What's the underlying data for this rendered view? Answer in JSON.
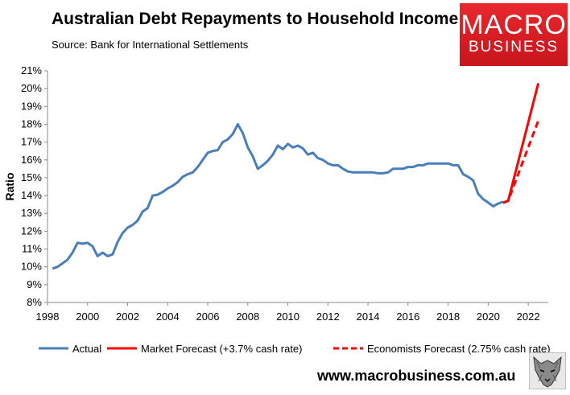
{
  "header": {
    "title": "Australian Debt Repayments to Household Income",
    "subtitle": "Source: Bank for International Settlements"
  },
  "logo": {
    "line1": "MACRO",
    "line2": "BUSINESS"
  },
  "footer": {
    "url": "www.macrobusiness.com.au",
    "icon": "wolf-icon"
  },
  "colors": {
    "actual": "#4a7ebb",
    "forecast": "#ff0000",
    "logo": "#d7191f"
  },
  "chart_data": {
    "type": "line",
    "ylabel": "Ratio",
    "xlabel": "",
    "xlim": [
      1998,
      2023
    ],
    "ylim": [
      8,
      21
    ],
    "x_ticks": [
      "1998",
      "2000",
      "2002",
      "2004",
      "2006",
      "2008",
      "2010",
      "2012",
      "2014",
      "2016",
      "2018",
      "2020",
      "2022"
    ],
    "y_ticks": [
      "8%",
      "9%",
      "10%",
      "11%",
      "12%",
      "13%",
      "14%",
      "15%",
      "16%",
      "17%",
      "18%",
      "19%",
      "20%",
      "21%"
    ],
    "legend_position": "bottom",
    "grid": false,
    "series": [
      {
        "name": "Actual",
        "style": "solid",
        "points": [
          [
            1998.25,
            9.9
          ],
          [
            1998.5,
            10.0
          ],
          [
            1998.75,
            10.2
          ],
          [
            1999.0,
            10.4
          ],
          [
            1999.25,
            10.8
          ],
          [
            1999.5,
            11.35
          ],
          [
            1999.75,
            11.3
          ],
          [
            2000.0,
            11.35
          ],
          [
            2000.25,
            11.15
          ],
          [
            2000.5,
            10.6
          ],
          [
            2000.75,
            10.8
          ],
          [
            2001.0,
            10.6
          ],
          [
            2001.25,
            10.7
          ],
          [
            2001.5,
            11.4
          ],
          [
            2001.75,
            11.9
          ],
          [
            2002.0,
            12.2
          ],
          [
            2002.25,
            12.35
          ],
          [
            2002.5,
            12.6
          ],
          [
            2002.75,
            13.1
          ],
          [
            2003.0,
            13.3
          ],
          [
            2003.25,
            14.0
          ],
          [
            2003.5,
            14.05
          ],
          [
            2003.75,
            14.2
          ],
          [
            2004.0,
            14.4
          ],
          [
            2004.25,
            14.55
          ],
          [
            2004.5,
            14.75
          ],
          [
            2004.75,
            15.05
          ],
          [
            2005.0,
            15.2
          ],
          [
            2005.25,
            15.3
          ],
          [
            2005.5,
            15.6
          ],
          [
            2005.75,
            16.0
          ],
          [
            2006.0,
            16.4
          ],
          [
            2006.25,
            16.5
          ],
          [
            2006.5,
            16.55
          ],
          [
            2006.75,
            17.0
          ],
          [
            2007.0,
            17.15
          ],
          [
            2007.25,
            17.45
          ],
          [
            2007.5,
            18.0
          ],
          [
            2007.75,
            17.5
          ],
          [
            2008.0,
            16.7
          ],
          [
            2008.25,
            16.2
          ],
          [
            2008.5,
            15.5
          ],
          [
            2008.75,
            15.7
          ],
          [
            2009.0,
            15.95
          ],
          [
            2009.25,
            16.3
          ],
          [
            2009.5,
            16.8
          ],
          [
            2009.75,
            16.6
          ],
          [
            2010.0,
            16.9
          ],
          [
            2010.25,
            16.7
          ],
          [
            2010.5,
            16.8
          ],
          [
            2010.75,
            16.65
          ],
          [
            2011.0,
            16.3
          ],
          [
            2011.25,
            16.4
          ],
          [
            2011.5,
            16.1
          ],
          [
            2011.75,
            16.0
          ],
          [
            2012.0,
            15.8
          ],
          [
            2012.25,
            15.7
          ],
          [
            2012.5,
            15.7
          ],
          [
            2012.75,
            15.5
          ],
          [
            2013.0,
            15.35
          ],
          [
            2013.25,
            15.3
          ],
          [
            2013.5,
            15.3
          ],
          [
            2013.75,
            15.3
          ],
          [
            2014.0,
            15.3
          ],
          [
            2014.25,
            15.3
          ],
          [
            2014.5,
            15.25
          ],
          [
            2014.75,
            15.25
          ],
          [
            2015.0,
            15.3
          ],
          [
            2015.25,
            15.5
          ],
          [
            2015.5,
            15.5
          ],
          [
            2015.75,
            15.5
          ],
          [
            2016.0,
            15.6
          ],
          [
            2016.25,
            15.6
          ],
          [
            2016.5,
            15.7
          ],
          [
            2016.75,
            15.7
          ],
          [
            2017.0,
            15.8
          ],
          [
            2017.25,
            15.8
          ],
          [
            2017.5,
            15.8
          ],
          [
            2017.75,
            15.8
          ],
          [
            2018.0,
            15.8
          ],
          [
            2018.25,
            15.7
          ],
          [
            2018.5,
            15.7
          ],
          [
            2018.75,
            15.2
          ],
          [
            2019.0,
            15.05
          ],
          [
            2019.25,
            14.85
          ],
          [
            2019.5,
            14.1
          ],
          [
            2019.75,
            13.8
          ],
          [
            2020.0,
            13.6
          ],
          [
            2020.25,
            13.4
          ],
          [
            2020.5,
            13.55
          ],
          [
            2020.75,
            13.65
          ]
        ]
      },
      {
        "name": "Market Forecast (+3.7% cash rate)",
        "style": "solid",
        "points": [
          [
            2020.75,
            13.6
          ],
          [
            2021.0,
            13.7
          ],
          [
            2022.5,
            20.3
          ]
        ]
      },
      {
        "name": "Economists Forecast (2.75% cash rate)",
        "style": "dashed",
        "points": [
          [
            2020.75,
            13.6
          ],
          [
            2021.0,
            13.7
          ],
          [
            2022.5,
            18.2
          ]
        ]
      }
    ]
  }
}
